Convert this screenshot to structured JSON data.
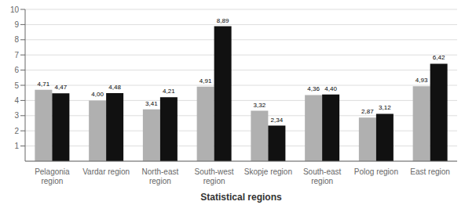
{
  "chart_data": {
    "type": "bar",
    "xlabel": "Statistical regions",
    "categories": [
      "Pelagonia\nregion",
      "Vardar region",
      "North-east\nregion",
      "South-west\nregion",
      "Skopje region",
      "South-east\nregion",
      "Polog region",
      "East region"
    ],
    "series": [
      {
        "color": "#b0b0b0",
        "values": [
          4.71,
          4.0,
          3.41,
          4.91,
          3.32,
          4.36,
          2.87,
          4.93
        ],
        "value_labels": [
          "4,71",
          "4,00",
          "3,41",
          "4,91",
          "3,32",
          "4,36",
          "2,87",
          "4,93"
        ]
      },
      {
        "color": "#111111",
        "values": [
          4.47,
          4.48,
          4.21,
          8.89,
          2.34,
          4.4,
          3.12,
          6.42
        ],
        "value_labels": [
          "4,47",
          "4,48",
          "4,21",
          "8,89",
          "2,34",
          "4,40",
          "3,12",
          "6,42"
        ]
      }
    ],
    "ylim": [
      0,
      10
    ],
    "yticks": [
      1,
      2,
      3,
      4,
      5,
      6,
      7,
      8,
      9,
      10
    ],
    "grid": true,
    "data_labels": true
  }
}
